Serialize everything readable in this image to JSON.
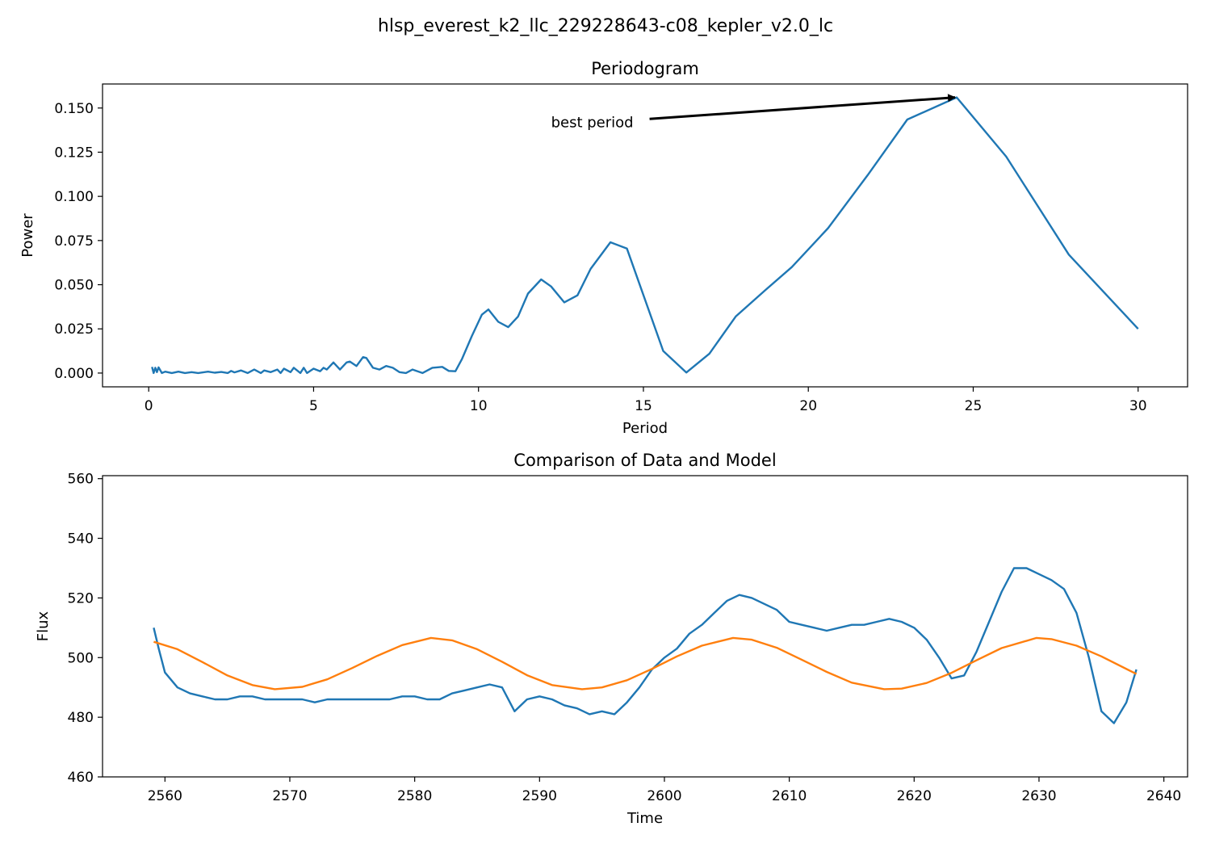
{
  "figure": {
    "suptitle": "hlsp_everest_k2_llc_229228643-c08_kepler_v2.0_lc"
  },
  "chart_data": [
    {
      "type": "line",
      "title": "Periodogram",
      "xlabel": "Period",
      "ylabel": "Power",
      "xlim": [
        -1.4,
        31.5
      ],
      "ylim": [
        -0.0078,
        0.1636
      ],
      "xticks": [
        0,
        5,
        10,
        15,
        20,
        25,
        30
      ],
      "xtick_labels": [
        "0",
        "5",
        "10",
        "15",
        "20",
        "25",
        "30"
      ],
      "yticks": [
        0.0,
        0.025,
        0.05,
        0.075,
        0.1,
        0.125,
        0.15
      ],
      "ytick_labels": [
        "0.000",
        "0.025",
        "0.050",
        "0.075",
        "0.100",
        "0.125",
        "0.150"
      ],
      "grid": false,
      "series": [
        {
          "color": "#1f77b4",
          "x": [
            0.1,
            0.15,
            0.2,
            0.25,
            0.3,
            0.4,
            0.5,
            0.7,
            0.9,
            1.1,
            1.3,
            1.5,
            1.8,
            2.0,
            2.2,
            2.4,
            2.5,
            2.6,
            2.8,
            3.0,
            3.2,
            3.4,
            3.5,
            3.7,
            3.9,
            4.0,
            4.1,
            4.3,
            4.4,
            4.6,
            4.7,
            4.8,
            5.0,
            5.2,
            5.3,
            5.4,
            5.6,
            5.8,
            6.0,
            6.1,
            6.3,
            6.5,
            6.6,
            6.8,
            7.0,
            7.2,
            7.4,
            7.6,
            7.8,
            8.0,
            8.3,
            8.6,
            8.9,
            9.1,
            9.3,
            9.5,
            9.8,
            10.1,
            10.3,
            10.6,
            10.9,
            11.2,
            11.5,
            11.9,
            12.2,
            12.6,
            13.0,
            13.4,
            14.0,
            14.5,
            15.6,
            16.3,
            17.0,
            17.8,
            18.7,
            19.5,
            20.6,
            21.8,
            23.0,
            24.5,
            26.0,
            27.9,
            30.0
          ],
          "y": [
            0.0035,
            0.0,
            0.003,
            0.0005,
            0.0032,
            0.0,
            0.0008,
            0.0,
            0.0008,
            0.0,
            0.0005,
            0.0,
            0.0008,
            0.0002,
            0.0006,
            0.0,
            0.0012,
            0.0004,
            0.0015,
            0.0,
            0.002,
            0.0,
            0.0015,
            0.0005,
            0.002,
            0.0,
            0.0025,
            0.0005,
            0.003,
            0.0,
            0.003,
            0.0,
            0.0025,
            0.001,
            0.003,
            0.002,
            0.006,
            0.002,
            0.006,
            0.0065,
            0.004,
            0.009,
            0.0085,
            0.003,
            0.002,
            0.004,
            0.003,
            0.0005,
            0.0,
            0.002,
            0.0,
            0.003,
            0.0035,
            0.0012,
            0.001,
            0.008,
            0.021,
            0.033,
            0.036,
            0.029,
            0.026,
            0.032,
            0.045,
            0.053,
            0.049,
            0.04,
            0.044,
            0.059,
            0.074,
            0.0705,
            0.0125,
            0.0003,
            0.011,
            0.032,
            0.047,
            0.06,
            0.082,
            0.112,
            0.1435,
            0.156,
            0.1225,
            0.067,
            0.025
          ]
        }
      ],
      "annotations": [
        {
          "text": "best period",
          "xy": [
            24.5,
            0.156
          ],
          "xytext": [
            12.2,
            0.142
          ]
        }
      ]
    },
    {
      "type": "line",
      "title": "Comparison of Data and Model",
      "xlabel": "Time",
      "ylabel": "Flux",
      "xlim": [
        2555.0,
        2641.9
      ],
      "ylim": [
        460,
        561
      ],
      "xticks": [
        2560,
        2570,
        2580,
        2590,
        2600,
        2610,
        2620,
        2630,
        2640
      ],
      "xtick_labels": [
        "2560",
        "2570",
        "2580",
        "2590",
        "2600",
        "2610",
        "2620",
        "2630",
        "2640"
      ],
      "yticks": [
        460,
        480,
        500,
        520,
        540,
        560
      ],
      "ytick_labels": [
        "460",
        "480",
        "500",
        "520",
        "540",
        "560"
      ],
      "grid": false,
      "series": [
        {
          "color": "#1f77b4",
          "x": [
            2559.1,
            2559.5,
            2560.0,
            2561.0,
            2562.0,
            2563.0,
            2564.0,
            2565.0,
            2566.0,
            2567.0,
            2568.0,
            2569.0,
            2570.0,
            2571.0,
            2572.0,
            2573.0,
            2574.0,
            2575.0,
            2576.0,
            2577.0,
            2578.0,
            2579.0,
            2580.0,
            2581.0,
            2582.0,
            2583.0,
            2584.0,
            2585.0,
            2586.0,
            2587.0,
            2588.0,
            2589.0,
            2590.0,
            2591.0,
            2592.0,
            2593.0,
            2594.0,
            2595.0,
            2596.0,
            2597.0,
            2598.0,
            2599.0,
            2600.0,
            2601.0,
            2602.0,
            2603.0,
            2604.0,
            2605.0,
            2606.0,
            2607.0,
            2608.0,
            2609.0,
            2610.0,
            2611.0,
            2612.0,
            2613.0,
            2614.0,
            2615.0,
            2616.0,
            2617.0,
            2618.0,
            2619.0,
            2620.0,
            2621.0,
            2622.0,
            2623.0,
            2624.0,
            2625.0,
            2626.0,
            2627.0,
            2628.0,
            2629.0,
            2630.0,
            2631.0,
            2632.0,
            2633.0,
            2634.0,
            2635.0,
            2636.0,
            2637.0,
            2637.8
          ],
          "y": [
            510,
            503,
            495,
            490,
            488,
            487,
            486,
            486,
            487,
            487,
            486,
            486,
            486,
            486,
            485,
            486,
            486,
            486,
            486,
            486,
            486,
            487,
            487,
            486,
            486,
            488,
            489,
            490,
            491,
            490,
            482,
            486,
            487,
            486,
            484,
            483,
            481,
            482,
            481,
            485,
            490,
            496,
            500,
            503,
            508,
            511,
            515,
            519,
            521,
            520,
            518,
            516,
            512,
            511,
            510,
            509,
            510,
            511,
            511,
            512,
            513,
            512,
            510,
            506,
            500,
            493,
            494,
            502,
            512,
            522,
            530,
            530,
            528,
            526,
            523,
            515,
            500,
            482,
            478,
            485,
            496
          ]
        },
        {
          "color": "#ff7f0e",
          "x": [
            2559.1,
            2561.0,
            2563.0,
            2565.0,
            2567.0,
            2568.8,
            2571.0,
            2573.0,
            2575.0,
            2577.0,
            2579.0,
            2581.3,
            2583.0,
            2585.0,
            2587.0,
            2589.0,
            2591.0,
            2593.4,
            2595.0,
            2597.0,
            2599.0,
            2601.0,
            2603.0,
            2605.5,
            2607.0,
            2609.0,
            2611.0,
            2613.0,
            2615.0,
            2617.6,
            2619.0,
            2621.0,
            2623.0,
            2625.0,
            2627.0,
            2629.8,
            2631.0,
            2633.0,
            2635.0,
            2637.8
          ],
          "y": [
            505.3,
            502.8,
            498.5,
            494.0,
            490.8,
            489.4,
            490.2,
            492.7,
            496.5,
            500.6,
            504.2,
            506.6,
            505.8,
            502.8,
            498.6,
            494.1,
            490.8,
            489.4,
            490.0,
            492.4,
            496.2,
            500.4,
            504.0,
            506.6,
            506.0,
            503.3,
            499.3,
            495.2,
            491.6,
            489.4,
            489.6,
            491.5,
            494.9,
            499.1,
            503.2,
            506.6,
            506.2,
            504.0,
            500.4,
            494.5
          ]
        }
      ]
    }
  ]
}
